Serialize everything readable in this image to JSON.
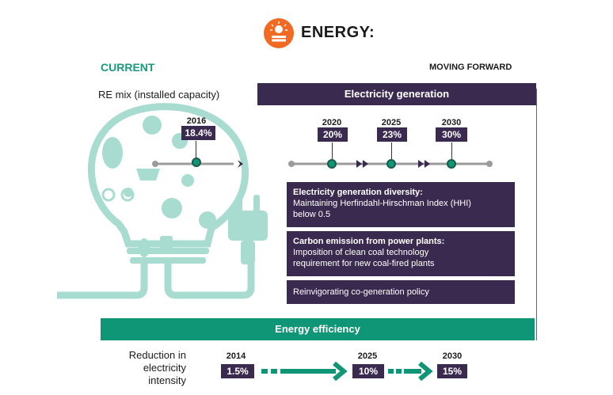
{
  "header": {
    "title": "ENERGY:",
    "logo_icon": "sun-solar-panel-logo-icon",
    "logo_color": "#f26a21"
  },
  "current": {
    "heading": "CURRENT",
    "re_mix_label": "RE mix (installed capacity)",
    "year": "2016",
    "value": "18.4%"
  },
  "moving_forward": {
    "heading": "MOVING FORWARD",
    "generation_banner": "Electricity generation",
    "milestones": [
      {
        "year": "2020",
        "value": "20%"
      },
      {
        "year": "2025",
        "value": "23%"
      },
      {
        "year": "2030",
        "value": "30%"
      }
    ],
    "cards": [
      {
        "title": "Electricity generation diversity:",
        "lines": [
          "Maintaining Herfindahl-Hirschman Index (HHI)",
          "below 0.5"
        ]
      },
      {
        "title": "Carbon emission from power plants:",
        "lines": [
          "Imposition of clean coal technology",
          "requirement for new coal-fired plants"
        ]
      },
      {
        "title": "",
        "lines": [
          "Reinvigorating co-generation policy"
        ]
      }
    ]
  },
  "efficiency": {
    "banner": "Energy efficiency",
    "label_lines": [
      "Reduction in",
      "electricity",
      "intensity"
    ],
    "milestones": [
      {
        "year": "2014",
        "value": "1.5%"
      },
      {
        "year": "2025",
        "value": "10%"
      },
      {
        "year": "2030",
        "value": "15%"
      }
    ]
  },
  "colors": {
    "purple": "#3b2a4f",
    "green": "#0f9676",
    "light_teal": "#a9dcd0"
  }
}
